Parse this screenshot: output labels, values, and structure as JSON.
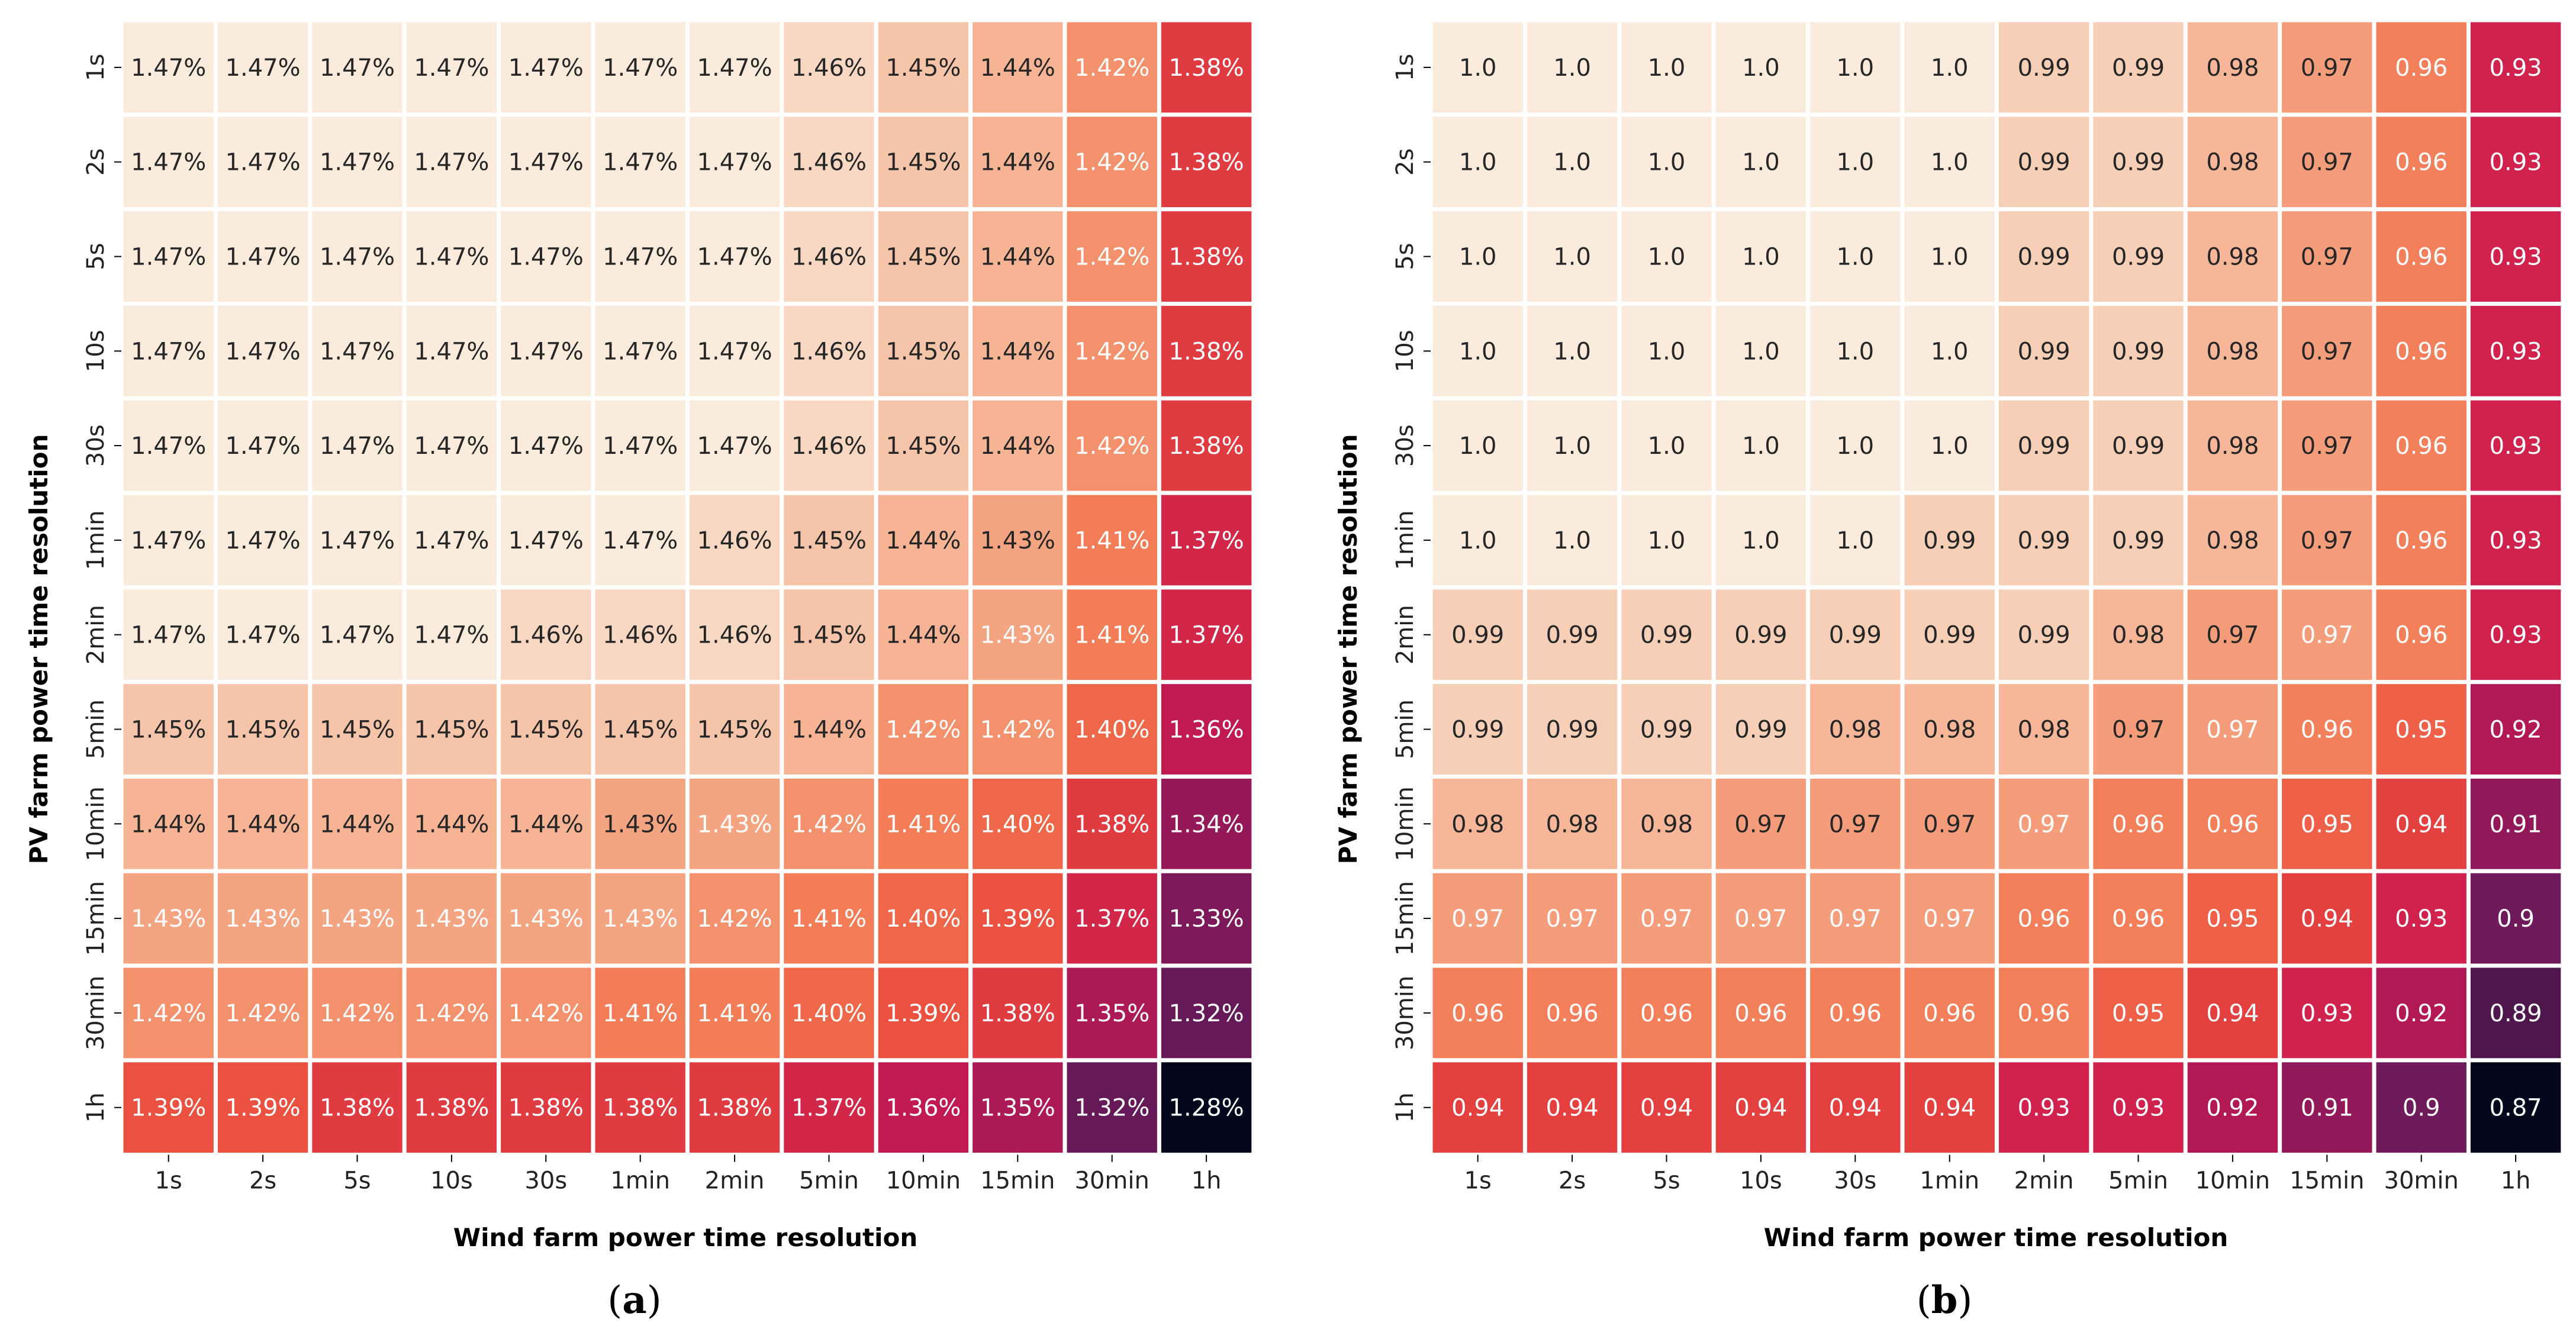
{
  "chart_data": [
    {
      "type": "heatmap",
      "panel": "a",
      "caption": {
        "open": "(",
        "letter": "a",
        "close": ")"
      },
      "xlabel": "Wind farm power time resolution",
      "ylabel": "PV farm power time resolution",
      "x_categories": [
        "1s",
        "2s",
        "5s",
        "10s",
        "30s",
        "1min",
        "2min",
        "5min",
        "10min",
        "15min",
        "30min",
        "1h"
      ],
      "y_categories": [
        "1s",
        "2s",
        "5s",
        "10s",
        "30s",
        "1min",
        "2min",
        "5min",
        "10min",
        "15min",
        "30min",
        "1h"
      ],
      "value_format": "percent",
      "color_range": [
        1.28,
        1.47
      ],
      "values": [
        [
          1.47,
          1.47,
          1.47,
          1.47,
          1.47,
          1.47,
          1.47,
          1.46,
          1.45,
          1.44,
          1.42,
          1.38
        ],
        [
          1.47,
          1.47,
          1.47,
          1.47,
          1.47,
          1.47,
          1.47,
          1.46,
          1.45,
          1.44,
          1.42,
          1.38
        ],
        [
          1.47,
          1.47,
          1.47,
          1.47,
          1.47,
          1.47,
          1.47,
          1.46,
          1.45,
          1.44,
          1.42,
          1.38
        ],
        [
          1.47,
          1.47,
          1.47,
          1.47,
          1.47,
          1.47,
          1.47,
          1.46,
          1.45,
          1.44,
          1.42,
          1.38
        ],
        [
          1.47,
          1.47,
          1.47,
          1.47,
          1.47,
          1.47,
          1.47,
          1.46,
          1.45,
          1.44,
          1.42,
          1.38
        ],
        [
          1.47,
          1.47,
          1.47,
          1.47,
          1.47,
          1.47,
          1.46,
          1.45,
          1.44,
          1.43,
          1.41,
          1.37
        ],
        [
          1.47,
          1.47,
          1.47,
          1.47,
          1.46,
          1.46,
          1.46,
          1.45,
          1.44,
          1.43,
          1.41,
          1.37
        ],
        [
          1.45,
          1.45,
          1.45,
          1.45,
          1.45,
          1.45,
          1.45,
          1.44,
          1.42,
          1.42,
          1.4,
          1.36
        ],
        [
          1.44,
          1.44,
          1.44,
          1.44,
          1.44,
          1.43,
          1.43,
          1.42,
          1.41,
          1.4,
          1.38,
          1.34
        ],
        [
          1.43,
          1.43,
          1.43,
          1.43,
          1.43,
          1.43,
          1.42,
          1.41,
          1.4,
          1.39,
          1.37,
          1.33
        ],
        [
          1.42,
          1.42,
          1.42,
          1.42,
          1.42,
          1.41,
          1.41,
          1.4,
          1.39,
          1.38,
          1.35,
          1.32
        ],
        [
          1.39,
          1.39,
          1.38,
          1.38,
          1.38,
          1.38,
          1.38,
          1.37,
          1.36,
          1.35,
          1.32,
          1.28
        ]
      ],
      "labels": [
        [
          "1.47%",
          "1.47%",
          "1.47%",
          "1.47%",
          "1.47%",
          "1.47%",
          "1.47%",
          "1.46%",
          "1.45%",
          "1.44%",
          "1.42%",
          "1.38%"
        ],
        [
          "1.47%",
          "1.47%",
          "1.47%",
          "1.47%",
          "1.47%",
          "1.47%",
          "1.47%",
          "1.46%",
          "1.45%",
          "1.44%",
          "1.42%",
          "1.38%"
        ],
        [
          "1.47%",
          "1.47%",
          "1.47%",
          "1.47%",
          "1.47%",
          "1.47%",
          "1.47%",
          "1.46%",
          "1.45%",
          "1.44%",
          "1.42%",
          "1.38%"
        ],
        [
          "1.47%",
          "1.47%",
          "1.47%",
          "1.47%",
          "1.47%",
          "1.47%",
          "1.47%",
          "1.46%",
          "1.45%",
          "1.44%",
          "1.42%",
          "1.38%"
        ],
        [
          "1.47%",
          "1.47%",
          "1.47%",
          "1.47%",
          "1.47%",
          "1.47%",
          "1.47%",
          "1.46%",
          "1.45%",
          "1.44%",
          "1.42%",
          "1.38%"
        ],
        [
          "1.47%",
          "1.47%",
          "1.47%",
          "1.47%",
          "1.47%",
          "1.47%",
          "1.46%",
          "1.45%",
          "1.44%",
          "1.43%",
          "1.41%",
          "1.37%"
        ],
        [
          "1.47%",
          "1.47%",
          "1.47%",
          "1.47%",
          "1.46%",
          "1.46%",
          "1.46%",
          "1.45%",
          "1.44%",
          "1.43%",
          "1.41%",
          "1.37%"
        ],
        [
          "1.45%",
          "1.45%",
          "1.45%",
          "1.45%",
          "1.45%",
          "1.45%",
          "1.45%",
          "1.44%",
          "1.42%",
          "1.42%",
          "1.40%",
          "1.36%"
        ],
        [
          "1.44%",
          "1.44%",
          "1.44%",
          "1.44%",
          "1.44%",
          "1.43%",
          "1.43%",
          "1.42%",
          "1.41%",
          "1.40%",
          "1.38%",
          "1.34%"
        ],
        [
          "1.43%",
          "1.43%",
          "1.43%",
          "1.43%",
          "1.43%",
          "1.43%",
          "1.42%",
          "1.41%",
          "1.40%",
          "1.39%",
          "1.37%",
          "1.33%"
        ],
        [
          "1.42%",
          "1.42%",
          "1.42%",
          "1.42%",
          "1.42%",
          "1.41%",
          "1.41%",
          "1.40%",
          "1.39%",
          "1.38%",
          "1.35%",
          "1.32%"
        ],
        [
          "1.39%",
          "1.39%",
          "1.38%",
          "1.38%",
          "1.38%",
          "1.38%",
          "1.38%",
          "1.37%",
          "1.36%",
          "1.35%",
          "1.32%",
          "1.28%"
        ]
      ],
      "white_text": [
        [
          0,
          0,
          0,
          0,
          0,
          0,
          0,
          0,
          0,
          0,
          1,
          1
        ],
        [
          0,
          0,
          0,
          0,
          0,
          0,
          0,
          0,
          0,
          0,
          1,
          1
        ],
        [
          0,
          0,
          0,
          0,
          0,
          0,
          0,
          0,
          0,
          0,
          1,
          1
        ],
        [
          0,
          0,
          0,
          0,
          0,
          0,
          0,
          0,
          0,
          0,
          1,
          1
        ],
        [
          0,
          0,
          0,
          0,
          0,
          0,
          0,
          0,
          0,
          0,
          1,
          1
        ],
        [
          0,
          0,
          0,
          0,
          0,
          0,
          0,
          0,
          0,
          0,
          1,
          1
        ],
        [
          0,
          0,
          0,
          0,
          0,
          0,
          0,
          0,
          0,
          1,
          1,
          1
        ],
        [
          0,
          0,
          0,
          0,
          0,
          0,
          0,
          0,
          1,
          1,
          1,
          1
        ],
        [
          0,
          0,
          0,
          0,
          0,
          0,
          1,
          1,
          1,
          1,
          1,
          1
        ],
        [
          1,
          1,
          1,
          1,
          1,
          1,
          1,
          1,
          1,
          1,
          1,
          1
        ],
        [
          1,
          1,
          1,
          1,
          1,
          1,
          1,
          1,
          1,
          1,
          1,
          1
        ],
        [
          1,
          1,
          1,
          1,
          1,
          1,
          1,
          1,
          1,
          1,
          1,
          1
        ]
      ]
    },
    {
      "type": "heatmap",
      "panel": "b",
      "caption": {
        "open": "(",
        "letter": "b",
        "close": ")"
      },
      "xlabel": "Wind farm power time resolution",
      "ylabel": "PV farm power time resolution",
      "x_categories": [
        "1s",
        "2s",
        "5s",
        "10s",
        "30s",
        "1min",
        "2min",
        "5min",
        "10min",
        "15min",
        "30min",
        "1h"
      ],
      "y_categories": [
        "1s",
        "2s",
        "5s",
        "10s",
        "30s",
        "1min",
        "2min",
        "5min",
        "10min",
        "15min",
        "30min",
        "1h"
      ],
      "value_format": "ratio",
      "color_range": [
        0.87,
        1.0
      ],
      "values": [
        [
          1.0,
          1.0,
          1.0,
          1.0,
          1.0,
          1.0,
          0.99,
          0.99,
          0.98,
          0.97,
          0.96,
          0.93
        ],
        [
          1.0,
          1.0,
          1.0,
          1.0,
          1.0,
          1.0,
          0.99,
          0.99,
          0.98,
          0.97,
          0.96,
          0.93
        ],
        [
          1.0,
          1.0,
          1.0,
          1.0,
          1.0,
          1.0,
          0.99,
          0.99,
          0.98,
          0.97,
          0.96,
          0.93
        ],
        [
          1.0,
          1.0,
          1.0,
          1.0,
          1.0,
          1.0,
          0.99,
          0.99,
          0.98,
          0.97,
          0.96,
          0.93
        ],
        [
          1.0,
          1.0,
          1.0,
          1.0,
          1.0,
          1.0,
          0.99,
          0.99,
          0.98,
          0.97,
          0.96,
          0.93
        ],
        [
          1.0,
          1.0,
          1.0,
          1.0,
          1.0,
          0.99,
          0.99,
          0.99,
          0.98,
          0.97,
          0.96,
          0.93
        ],
        [
          0.99,
          0.99,
          0.99,
          0.99,
          0.99,
          0.99,
          0.99,
          0.98,
          0.97,
          0.97,
          0.96,
          0.93
        ],
        [
          0.99,
          0.99,
          0.99,
          0.99,
          0.98,
          0.98,
          0.98,
          0.97,
          0.97,
          0.96,
          0.95,
          0.92
        ],
        [
          0.98,
          0.98,
          0.98,
          0.97,
          0.97,
          0.97,
          0.97,
          0.96,
          0.96,
          0.95,
          0.94,
          0.91
        ],
        [
          0.97,
          0.97,
          0.97,
          0.97,
          0.97,
          0.97,
          0.96,
          0.96,
          0.95,
          0.94,
          0.93,
          0.9
        ],
        [
          0.96,
          0.96,
          0.96,
          0.96,
          0.96,
          0.96,
          0.96,
          0.95,
          0.94,
          0.93,
          0.92,
          0.89
        ],
        [
          0.94,
          0.94,
          0.94,
          0.94,
          0.94,
          0.94,
          0.93,
          0.93,
          0.92,
          0.91,
          0.9,
          0.87
        ]
      ],
      "labels": [
        [
          "1.0",
          "1.0",
          "1.0",
          "1.0",
          "1.0",
          "1.0",
          "0.99",
          "0.99",
          "0.98",
          "0.97",
          "0.96",
          "0.93"
        ],
        [
          "1.0",
          "1.0",
          "1.0",
          "1.0",
          "1.0",
          "1.0",
          "0.99",
          "0.99",
          "0.98",
          "0.97",
          "0.96",
          "0.93"
        ],
        [
          "1.0",
          "1.0",
          "1.0",
          "1.0",
          "1.0",
          "1.0",
          "0.99",
          "0.99",
          "0.98",
          "0.97",
          "0.96",
          "0.93"
        ],
        [
          "1.0",
          "1.0",
          "1.0",
          "1.0",
          "1.0",
          "1.0",
          "0.99",
          "0.99",
          "0.98",
          "0.97",
          "0.96",
          "0.93"
        ],
        [
          "1.0",
          "1.0",
          "1.0",
          "1.0",
          "1.0",
          "1.0",
          "0.99",
          "0.99",
          "0.98",
          "0.97",
          "0.96",
          "0.93"
        ],
        [
          "1.0",
          "1.0",
          "1.0",
          "1.0",
          "1.0",
          "0.99",
          "0.99",
          "0.99",
          "0.98",
          "0.97",
          "0.96",
          "0.93"
        ],
        [
          "0.99",
          "0.99",
          "0.99",
          "0.99",
          "0.99",
          "0.99",
          "0.99",
          "0.98",
          "0.97",
          "0.97",
          "0.96",
          "0.93"
        ],
        [
          "0.99",
          "0.99",
          "0.99",
          "0.99",
          "0.98",
          "0.98",
          "0.98",
          "0.97",
          "0.97",
          "0.96",
          "0.95",
          "0.92"
        ],
        [
          "0.98",
          "0.98",
          "0.98",
          "0.97",
          "0.97",
          "0.97",
          "0.97",
          "0.96",
          "0.96",
          "0.95",
          "0.94",
          "0.91"
        ],
        [
          "0.97",
          "0.97",
          "0.97",
          "0.97",
          "0.97",
          "0.97",
          "0.96",
          "0.96",
          "0.95",
          "0.94",
          "0.93",
          "0.9"
        ],
        [
          "0.96",
          "0.96",
          "0.96",
          "0.96",
          "0.96",
          "0.96",
          "0.96",
          "0.95",
          "0.94",
          "0.93",
          "0.92",
          "0.89"
        ],
        [
          "0.94",
          "0.94",
          "0.94",
          "0.94",
          "0.94",
          "0.94",
          "0.93",
          "0.93",
          "0.92",
          "0.91",
          "0.9",
          "0.87"
        ]
      ],
      "white_text": [
        [
          0,
          0,
          0,
          0,
          0,
          0,
          0,
          0,
          0,
          0,
          1,
          1
        ],
        [
          0,
          0,
          0,
          0,
          0,
          0,
          0,
          0,
          0,
          0,
          1,
          1
        ],
        [
          0,
          0,
          0,
          0,
          0,
          0,
          0,
          0,
          0,
          0,
          1,
          1
        ],
        [
          0,
          0,
          0,
          0,
          0,
          0,
          0,
          0,
          0,
          0,
          1,
          1
        ],
        [
          0,
          0,
          0,
          0,
          0,
          0,
          0,
          0,
          0,
          0,
          1,
          1
        ],
        [
          0,
          0,
          0,
          0,
          0,
          0,
          0,
          0,
          0,
          0,
          1,
          1
        ],
        [
          0,
          0,
          0,
          0,
          0,
          0,
          0,
          0,
          0,
          1,
          1,
          1
        ],
        [
          0,
          0,
          0,
          0,
          0,
          0,
          0,
          0,
          1,
          1,
          1,
          1
        ],
        [
          0,
          0,
          0,
          0,
          0,
          0,
          1,
          1,
          1,
          1,
          1,
          1
        ],
        [
          1,
          1,
          1,
          1,
          1,
          1,
          1,
          1,
          1,
          1,
          1,
          1
        ],
        [
          1,
          1,
          1,
          1,
          1,
          1,
          1,
          1,
          1,
          1,
          1,
          1
        ],
        [
          1,
          1,
          1,
          1,
          1,
          1,
          1,
          1,
          1,
          1,
          1,
          1
        ]
      ]
    }
  ],
  "colormap": {
    "name": "rocket",
    "stops": [
      "#faebdd",
      "#f6c3a6",
      "#f5a07e",
      "#f2764f",
      "#e9473d",
      "#cb1b4f",
      "#9d1859",
      "#6a1a5b",
      "#3c1445",
      "#03051a"
    ]
  },
  "colors": {
    "background": "#ffffff",
    "cell_gap": "#ffffff",
    "text_dark": "#262626",
    "text_light": "#ffffff",
    "axis": "#000000"
  }
}
